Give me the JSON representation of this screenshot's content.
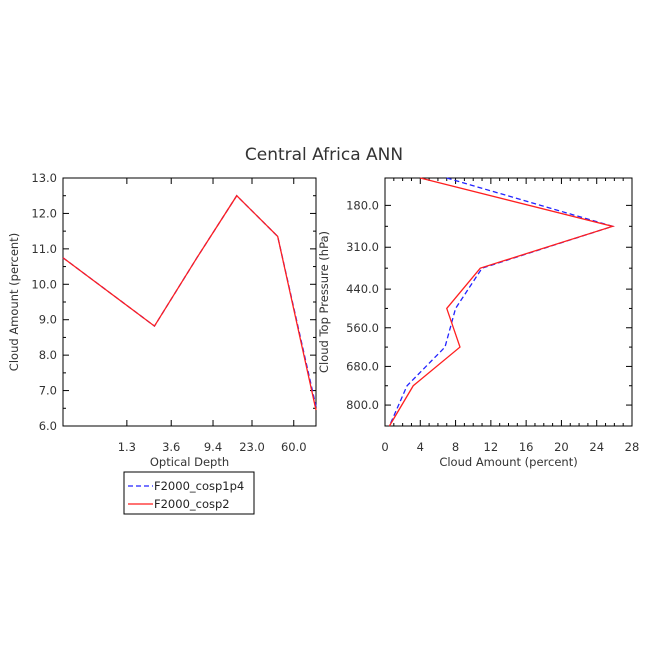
{
  "title": "Central Africa ANN",
  "colors": {
    "cosp1p4": "#2323ff",
    "cosp2": "#ff1f1f",
    "axes": "#000000",
    "text": "#333333"
  },
  "chart_data": [
    {
      "type": "line",
      "xlabel": "Optical Depth",
      "ylabel": "Cloud Amount (percent)",
      "x_tick_labels": [
        "1.3",
        "3.6",
        "9.4",
        "23.0",
        "60.0"
      ],
      "x": [
        0.3,
        2.45,
        6.5,
        16.2,
        41.5,
        100
      ],
      "y_ticks": [
        6.0,
        7.0,
        8.0,
        9.0,
        10.0,
        11.0,
        12.0,
        13.0
      ],
      "y_tick_labels": [
        "6.0",
        "7.0",
        "8.0",
        "9.0",
        "10.0",
        "11.0",
        "12.0",
        "13.0"
      ],
      "ylim": [
        6.0,
        13.0
      ],
      "series": [
        {
          "name": "F2000_cosp1p4",
          "style": "dashed",
          "values": [
            10.75,
            8.82,
            10.75,
            12.5,
            11.35,
            6.55
          ]
        },
        {
          "name": "F2000_cosp2",
          "style": "solid",
          "values": [
            10.75,
            8.82,
            10.75,
            12.5,
            11.35,
            6.45
          ]
        }
      ]
    },
    {
      "type": "line",
      "xlabel": "Cloud Amount (percent)",
      "ylabel": "Cloud Top Pressure (hPa)",
      "x_ticks": [
        0,
        4,
        8,
        12,
        16,
        20,
        24,
        28
      ],
      "x_tick_labels": [
        "0",
        "4",
        "8",
        "12",
        "16",
        "20",
        "24",
        "28"
      ],
      "xlim": [
        0,
        28
      ],
      "y_tick_labels": [
        "180.0",
        "310.0",
        "440.0",
        "560.0",
        "680.0",
        "800.0"
      ],
      "y_ticks": [
        180,
        310,
        440,
        560,
        680,
        800
      ],
      "ylim": [
        95,
        865
      ],
      "y": [
        95,
        245,
        375,
        500,
        620,
        740,
        865
      ],
      "series": [
        {
          "name": "F2000_cosp1p4",
          "style": "dashed",
          "values": [
            7.0,
            25.8,
            11.0,
            8.0,
            6.8,
            2.5,
            0.5
          ]
        },
        {
          "name": "F2000_cosp2",
          "style": "solid",
          "values": [
            4.0,
            25.8,
            10.8,
            7.0,
            8.5,
            3.2,
            0.5
          ]
        }
      ]
    }
  ]
}
